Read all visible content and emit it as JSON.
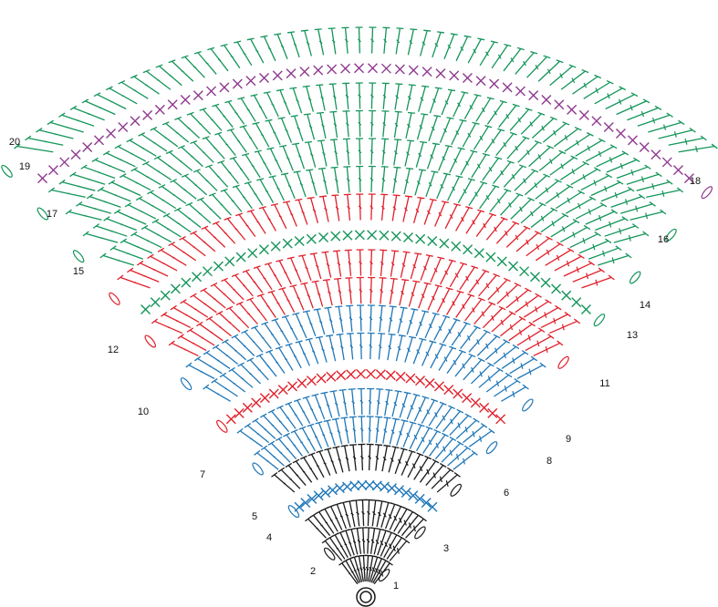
{
  "colors": {
    "black": "#1a1a1a",
    "blue": "#1f77b8",
    "red": "#e0202a",
    "green": "#14955a",
    "purple": "#8e3a8f",
    "label": "#111111"
  },
  "rows": [
    {
      "label": "1",
      "color": "black",
      "stitch": "dc",
      "count": 12
    },
    {
      "label": "2",
      "color": "black",
      "stitch": "dc",
      "count": 16
    },
    {
      "label": "3",
      "color": "black",
      "stitch": "dc",
      "count": 20
    },
    {
      "label": "4",
      "color": "blue",
      "stitch": "sc",
      "count": 20
    },
    {
      "label": "5",
      "color": "black",
      "stitch": "dc",
      "count": 24
    },
    {
      "label": "6",
      "color": "blue",
      "stitch": "dc",
      "count": 28
    },
    {
      "label": "7",
      "color": "blue",
      "stitch": "dc",
      "count": 30
    },
    {
      "label": "8",
      "color": "red",
      "stitch": "sc",
      "count": 30
    },
    {
      "label": "9",
      "color": "blue",
      "stitch": "dc",
      "count": 34
    },
    {
      "label": "10",
      "color": "blue",
      "stitch": "dc",
      "count": 36
    },
    {
      "label": "11",
      "color": "red",
      "stitch": "dc",
      "count": 38
    },
    {
      "label": "12",
      "color": "red",
      "stitch": "dc",
      "count": 40
    },
    {
      "label": "13",
      "color": "green",
      "stitch": "sc",
      "count": 40
    },
    {
      "label": "14",
      "color": "red",
      "stitch": "dc",
      "count": 44
    },
    {
      "label": "15",
      "color": "green",
      "stitch": "dc",
      "count": 46
    },
    {
      "label": "16",
      "color": "green",
      "stitch": "dc",
      "count": 48
    },
    {
      "label": "17",
      "color": "green",
      "stitch": "dc",
      "count": 50
    },
    {
      "label": "18",
      "color": "green",
      "stitch": "dc",
      "count": 52
    },
    {
      "label": "19",
      "color": "purple",
      "stitch": "sc",
      "count": 52
    },
    {
      "label": "20",
      "color": "green",
      "stitch": "dc",
      "count": 56
    }
  ]
}
